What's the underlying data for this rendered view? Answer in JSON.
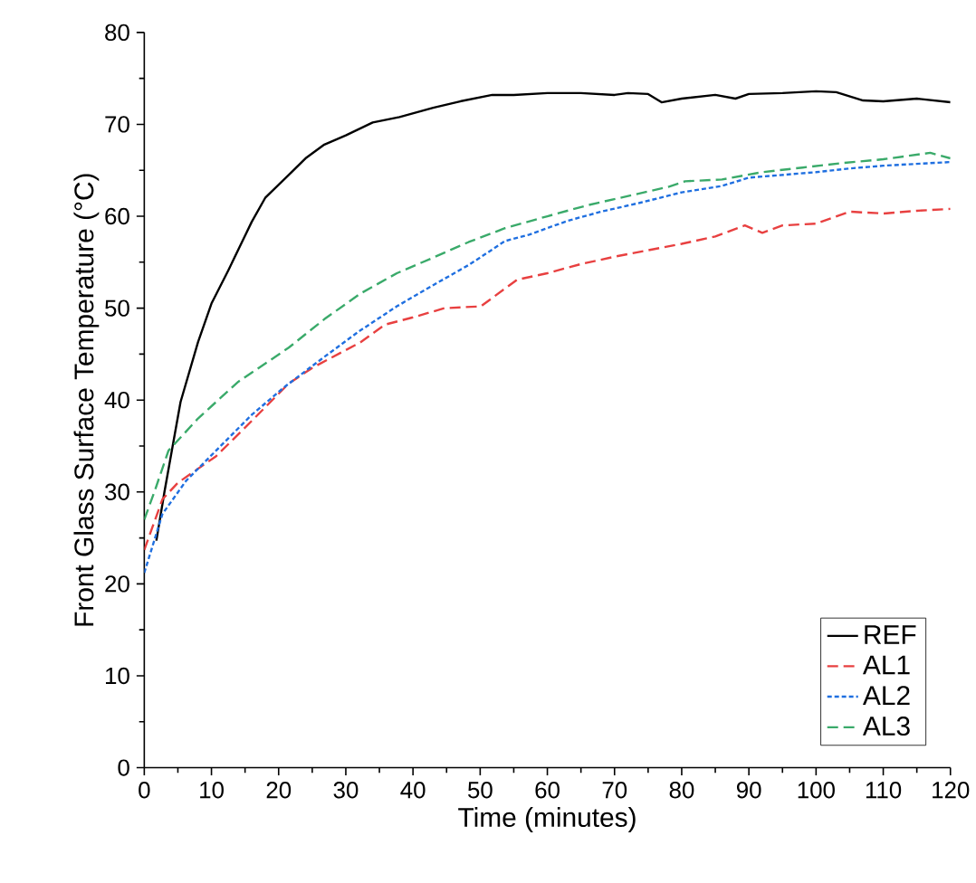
{
  "chart_data": {
    "type": "line",
    "xlabel": "Time (minutes)",
    "ylabel": "Front Glass Surface Temperature (°C)",
    "xlim": [
      0,
      120
    ],
    "ylim": [
      0,
      80
    ],
    "xticks": [
      0,
      10,
      20,
      30,
      40,
      50,
      60,
      70,
      80,
      90,
      100,
      110,
      120
    ],
    "yticks": [
      0,
      10,
      20,
      30,
      40,
      50,
      60,
      70,
      80
    ],
    "grid": false,
    "legend": "bottom right",
    "marker": "none",
    "series": [
      {
        "name": "REF",
        "color": "#000000",
        "line_style": "solid",
        "x": [
          1.8,
          3,
          5.4,
          8,
          10,
          12.5,
          16,
          18,
          21.5,
          24,
          26.8,
          30,
          34,
          38,
          43,
          47,
          51.8,
          55,
          60,
          65,
          70,
          72,
          75,
          77,
          80,
          85,
          88,
          90,
          95,
          100,
          103,
          107,
          110,
          115,
          120
        ],
        "values": [
          24.7,
          30,
          39.8,
          46.3,
          50.5,
          54.1,
          59.4,
          62,
          64.5,
          66.3,
          67.8,
          68.8,
          70.2,
          70.8,
          71.8,
          72.5,
          73.2,
          73.2,
          73.4,
          73.4,
          73.2,
          73.4,
          73.3,
          72.4,
          72.8,
          73.2,
          72.8,
          73.3,
          73.4,
          73.6,
          73.5,
          72.6,
          72.5,
          72.8,
          72.4
        ]
      },
      {
        "name": "AL1",
        "color": "#e84040",
        "line_style": "dashed",
        "x": [
          0,
          2.7,
          5,
          10.7,
          15,
          21.5,
          25,
          32.2,
          35.8,
          40,
          44.7,
          50.1,
          55.5,
          60,
          65,
          70,
          75,
          80,
          85,
          89.4,
          92,
          95,
          100,
          105,
          110,
          115,
          120
        ],
        "values": [
          23.7,
          29.2,
          31,
          33.9,
          37,
          41.8,
          43.5,
          46.3,
          48.2,
          49,
          50,
          50.2,
          53.1,
          53.8,
          54.8,
          55.6,
          56.3,
          57,
          57.8,
          59,
          58.2,
          59,
          59.2,
          60.5,
          60.3,
          60.6,
          60.8
        ]
      },
      {
        "name": "AL2",
        "color": "#1f6fe0",
        "line_style": "dotted",
        "x": [
          0,
          2.7,
          6.2,
          10,
          16,
          21,
          26.8,
          32,
          37.6,
          43,
          48.3,
          53.7,
          57.3,
          63,
          68,
          74,
          80,
          86,
          90,
          95,
          100,
          105,
          110,
          115,
          120
        ],
        "values": [
          21.2,
          27.6,
          31.2,
          34,
          38.4,
          41.5,
          44.7,
          47.5,
          50.2,
          52.5,
          54.7,
          57.3,
          58,
          59.5,
          60.5,
          61.5,
          62.6,
          63.3,
          64.2,
          64.5,
          64.8,
          65.2,
          65.5,
          65.7,
          65.9
        ]
      },
      {
        "name": "AL3",
        "color": "#3aaa6a",
        "line_style": "dashed",
        "x": [
          0,
          1.5,
          3.6,
          8,
          14,
          21.5,
          26.8,
          32.2,
          37.6,
          43,
          48.3,
          53.7,
          60,
          66,
          72,
          78,
          80.5,
          86,
          92,
          98,
          104,
          110,
          117,
          120
        ],
        "values": [
          27,
          30,
          34.5,
          38,
          42,
          45.7,
          48.8,
          51.6,
          53.8,
          55.5,
          57.2,
          58.7,
          60,
          61.2,
          62.2,
          63.2,
          63.8,
          64,
          64.8,
          65.3,
          65.8,
          66.2,
          66.9,
          66.3
        ]
      }
    ]
  }
}
